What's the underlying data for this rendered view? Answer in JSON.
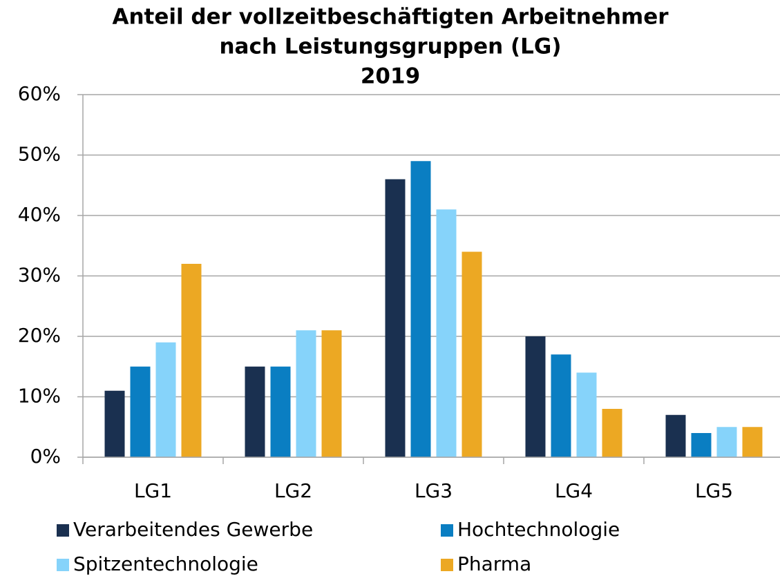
{
  "chart_data": {
    "type": "bar",
    "title": [
      "Anteil der vollzeitbeschäftigten Arbeitnehmer",
      "nach Leistungsgruppen (LG)",
      "2019"
    ],
    "categories": [
      "LG1",
      "LG2",
      "LG3",
      "LG4",
      "LG5"
    ],
    "series": [
      {
        "name": "Verarbeitendes Gewerbe",
        "color": "#1a3050",
        "values": [
          11,
          15,
          46,
          20,
          7
        ]
      },
      {
        "name": "Hochtechnologie",
        "color": "#0a7ec2",
        "values": [
          15,
          15,
          49,
          17,
          4
        ]
      },
      {
        "name": "Spitzentechnologie",
        "color": "#86d3fa",
        "values": [
          19,
          21,
          41,
          14,
          5
        ]
      },
      {
        "name": "Pharma",
        "color": "#eca823",
        "values": [
          32,
          21,
          34,
          8,
          5
        ]
      }
    ],
    "ylim": [
      0,
      60
    ],
    "yticks": [
      {
        "value": 0,
        "label": "0%"
      },
      {
        "value": 10,
        "label": "10%"
      },
      {
        "value": 20,
        "label": "20%"
      },
      {
        "value": 30,
        "label": "30%"
      },
      {
        "value": 40,
        "label": "40%"
      },
      {
        "value": 50,
        "label": "50%"
      },
      {
        "value": 60,
        "label": "60%"
      }
    ],
    "grid": true,
    "legend": "bottom"
  }
}
